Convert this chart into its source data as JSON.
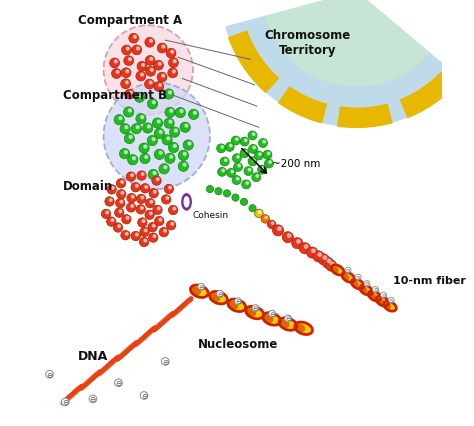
{
  "background_color": "#ffffff",
  "labels": {
    "compartment_a": "Compartment A",
    "compartment_b": "Compartment B",
    "chromosome_territory": "Chromosome\nTerritory",
    "domain": "Domain",
    "cohesin": "Cohesin",
    "scale_200nm": "~200 nm",
    "fiber_10nm": "10-nm fiber",
    "nucleosome": "Nucleosome",
    "dna": "DNA"
  },
  "colors": {
    "red_chromatin": "#e8341c",
    "green_chromatin": "#22bb22",
    "chromosome_gold": "#e8b800",
    "chromosome_fill_outer": "#b8d8e8",
    "chromosome_fill_inner": "#c8e8d0",
    "compartment_a_fill": "#f8d8e0",
    "compartment_a_edge": "#cc8898",
    "compartment_b_fill": "#d0d8f8",
    "compartment_b_edge": "#8898cc",
    "cohesin_purple": "#7030a0",
    "dna_orange": "#e84010",
    "nucleosome_red": "#cc2200",
    "nucleosome_yellow": "#ffcc00",
    "label_color": "#111111",
    "bead_orange": "#ff6600",
    "bead_yellow": "#ddcc00",
    "line_color": "#888888"
  },
  "figsize": [
    4.74,
    4.27
  ],
  "dpi": 100
}
